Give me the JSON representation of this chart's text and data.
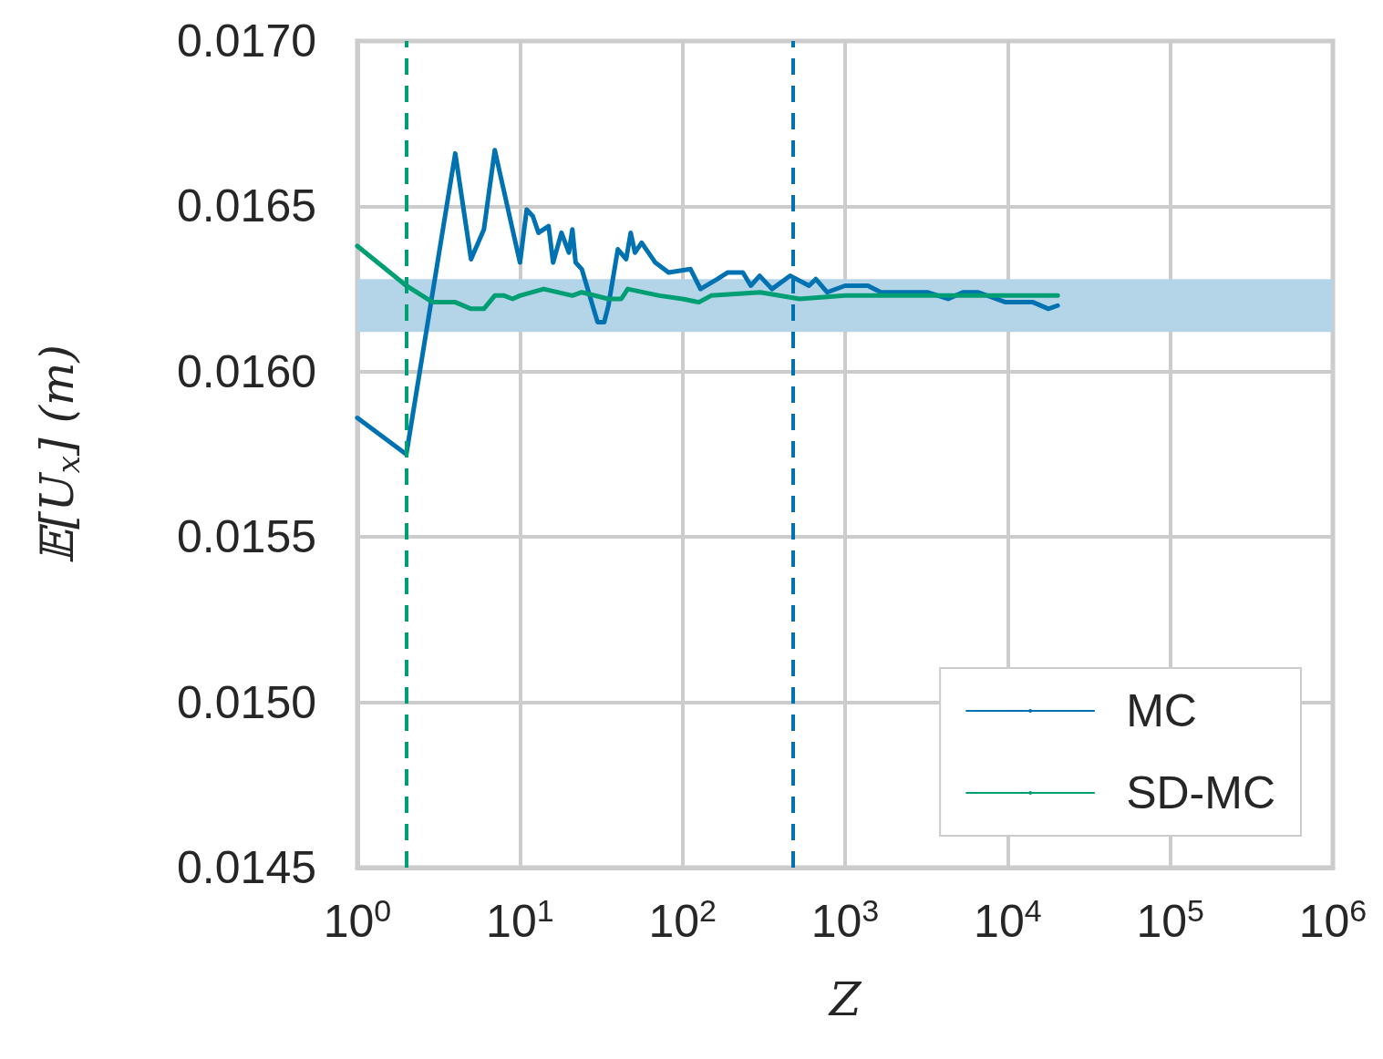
{
  "chart_data": {
    "type": "line",
    "xlabel": "Z",
    "ylabel": "𝔼[U$_{x}$] (m)",
    "log": "x",
    "grid": true,
    "legend": "bottom right",
    "marker": "none",
    "line_style": "solid",
    "xlim": [
      1,
      1000000
    ],
    "xticks": [
      {
        "value": 1,
        "label": "10$^{0}$"
      },
      {
        "value": 10,
        "label": "10$^{1}$"
      },
      {
        "value": 100,
        "label": "10$^{2}$"
      },
      {
        "value": 1000,
        "label": "10$^{3}$"
      },
      {
        "value": 10000,
        "label": "10$^{4}$"
      },
      {
        "value": 100000,
        "label": "10$^{5}$"
      },
      {
        "value": 1000000,
        "label": "10$^{6}$"
      }
    ],
    "ylim": [
      0.0145,
      0.017
    ],
    "yticks": [
      {
        "value": 0.0145,
        "label": "0.0145"
      },
      {
        "value": 0.015,
        "label": "0.0150"
      },
      {
        "value": 0.0155,
        "label": "0.0155"
      },
      {
        "value": 0.016,
        "label": "0.0160"
      },
      {
        "value": 0.0165,
        "label": "0.0165"
      },
      {
        "value": 0.017,
        "label": "0.0170"
      }
    ],
    "series": [
      {
        "name": "MC",
        "color": "#0072b2",
        "x": [
          1,
          2,
          4,
          5,
          6,
          7,
          10,
          11,
          12,
          13,
          15,
          16,
          18,
          20,
          21,
          22,
          24,
          30,
          33,
          35,
          40,
          45,
          48,
          51,
          56,
          68,
          82,
          112,
          129,
          164,
          190,
          235,
          263,
          298,
          355,
          460,
          600,
          660,
          775,
          1000,
          1380,
          1660,
          3200,
          4300,
          5300,
          6600,
          9700,
          14300,
          17800,
          20300
        ],
        "values": [
          0.01586,
          0.01575,
          0.01666,
          0.01634,
          0.01643,
          0.01667,
          0.01633,
          0.01649,
          0.01647,
          0.01642,
          0.01644,
          0.01633,
          0.01642,
          0.01636,
          0.01643,
          0.01633,
          0.01631,
          0.01615,
          0.01615,
          0.0162,
          0.01637,
          0.01634,
          0.01642,
          0.01636,
          0.01639,
          0.01633,
          0.0163,
          0.01631,
          0.01625,
          0.01628,
          0.0163,
          0.0163,
          0.01626,
          0.01629,
          0.01625,
          0.01629,
          0.01626,
          0.01628,
          0.01624,
          0.01626,
          0.01626,
          0.01624,
          0.01624,
          0.01622,
          0.01624,
          0.01624,
          0.01621,
          0.01621,
          0.01619,
          0.0162
        ]
      },
      {
        "name": "SD-MC",
        "color": "#009e73",
        "x": [
          1,
          2,
          2.9,
          4,
          5,
          6,
          7,
          8,
          9,
          10,
          14,
          21,
          24,
          35,
          42,
          46,
          72,
          100,
          126,
          150,
          300,
          525,
          1000,
          5000,
          20300
        ],
        "values": [
          0.01638,
          0.01626,
          0.01621,
          0.01621,
          0.01619,
          0.01619,
          0.01623,
          0.01623,
          0.01622,
          0.01623,
          0.01625,
          0.01623,
          0.01624,
          0.01622,
          0.01622,
          0.01625,
          0.01623,
          0.01622,
          0.01621,
          0.01623,
          0.01624,
          0.01622,
          0.01623,
          0.01623,
          0.01623
        ]
      }
    ],
    "ref_lines": [
      {
        "axis": "x",
        "value": 2,
        "color": "#009e73",
        "line_style": "dashed"
      },
      {
        "axis": "x",
        "value": 475,
        "color": "#0072b2",
        "line_style": "dashed"
      }
    ],
    "bands": [
      {
        "axis": "y",
        "from": 0.01612,
        "to": 0.01628,
        "color": "#b4d4e8"
      }
    ]
  }
}
